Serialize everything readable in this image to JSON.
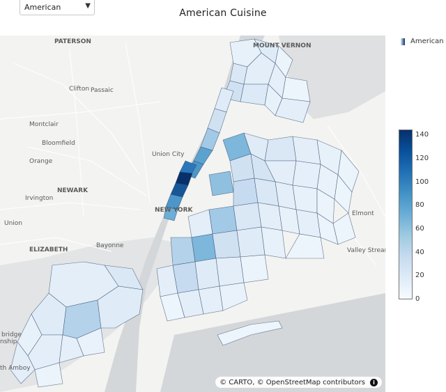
{
  "dropdown": {
    "selected": "American",
    "arrow": "▼"
  },
  "title": "American Cuisine",
  "legend": {
    "label": "American"
  },
  "colorbar": {
    "ticks": [
      "140",
      "120",
      "100",
      "80",
      "60",
      "40",
      "20",
      "0"
    ],
    "min": 0,
    "max": 145
  },
  "attribution": {
    "text": "© CARTO, © OpenStreetMap contributors",
    "icon": "info-icon"
  },
  "places": [
    {
      "name": "PATERSON",
      "weight": "bold"
    },
    {
      "name": "MOUNT VERNON",
      "weight": "bold"
    },
    {
      "name": "Clifton",
      "weight": "normal"
    },
    {
      "name": "Passaic",
      "weight": "normal"
    },
    {
      "name": "Montclair",
      "weight": "normal"
    },
    {
      "name": "Bloomfield",
      "weight": "normal"
    },
    {
      "name": "Orange",
      "weight": "normal"
    },
    {
      "name": "Union City",
      "weight": "normal"
    },
    {
      "name": "NEWARK",
      "weight": "bold"
    },
    {
      "name": "Irvington",
      "weight": "normal"
    },
    {
      "name": "Union",
      "weight": "normal"
    },
    {
      "name": "NEW YORK",
      "weight": "bold"
    },
    {
      "name": "ELIZABETH",
      "weight": "bold"
    },
    {
      "name": "Bayonne",
      "weight": "normal"
    },
    {
      "name": "Elmont",
      "weight": "normal"
    },
    {
      "name": "Valley Stream",
      "weight": "normal"
    },
    {
      "name": "bridge",
      "weight": "normal"
    },
    {
      "name": "nship",
      "weight": "normal"
    },
    {
      "name": "th Amboy",
      "weight": "normal"
    }
  ],
  "colors": {
    "low": "#f7fbff",
    "high": "#08306b",
    "water": "#d4d7da",
    "land": "#f3f3f1",
    "border": "#2a3f5f"
  }
}
